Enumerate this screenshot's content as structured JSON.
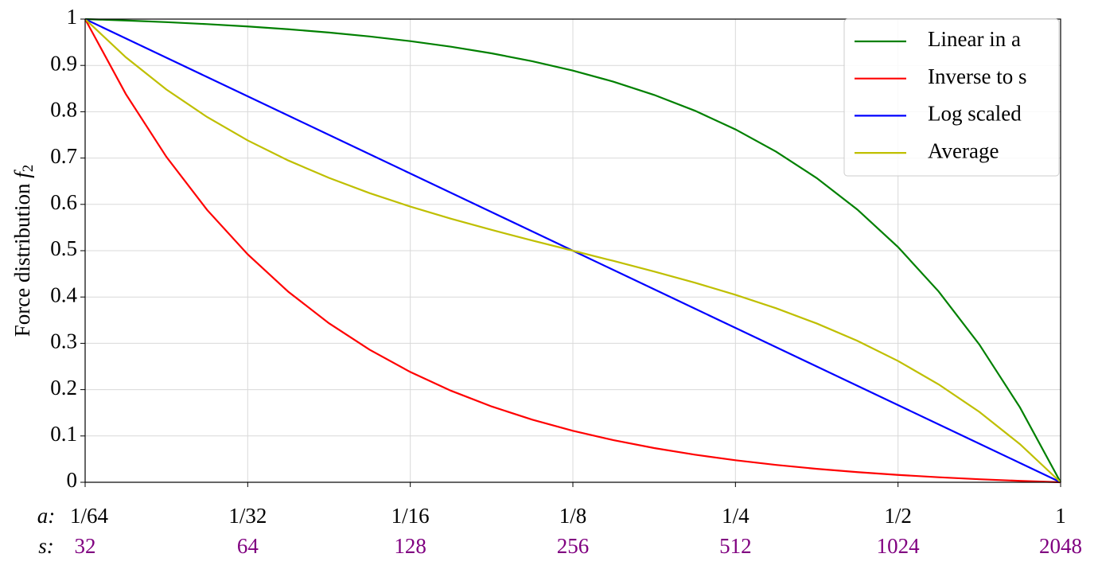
{
  "chart_data": {
    "type": "line",
    "ylabel": {
      "text": "Force distribution",
      "var": "f",
      "sub": "2"
    },
    "xlabel": "a:",
    "x2label": "s:",
    "x": [
      0.015625,
      0.018581,
      0.022097,
      0.026278,
      0.03125,
      0.037163,
      0.044194,
      0.052556,
      0.0625,
      0.074325,
      0.088388,
      0.105112,
      0.125,
      0.148651,
      0.176777,
      0.210224,
      0.25,
      0.297302,
      0.353553,
      0.420448,
      0.5,
      0.594604,
      0.707107,
      0.840896,
      1
    ],
    "series": [
      {
        "name": "Linear in a",
        "color": "#008000",
        "values": [
          1.0,
          0.997,
          0.99343,
          0.98918,
          0.98413,
          0.97812,
          0.97098,
          0.96248,
          0.95238,
          0.94037,
          0.92608,
          0.90909,
          0.88889,
          0.86486,
          0.83629,
          0.80232,
          0.7619,
          0.71385,
          0.65671,
          0.58875,
          0.50794,
          0.41183,
          0.29754,
          0.16163,
          0
        ]
      },
      {
        "name": "Inverse to s",
        "color": "#ff0000",
        "values": [
          1.0,
          0.83837,
          0.70246,
          0.58818,
          0.49206,
          0.41125,
          0.34329,
          0.28615,
          0.2381,
          0.19768,
          0.16371,
          0.13514,
          0.11111,
          0.09091,
          0.07392,
          0.05963,
          0.04762,
          0.03752,
          0.02902,
          0.02188,
          0.01587,
          0.01083,
          0.00657,
          0.003,
          0
        ]
      },
      {
        "name": "Log scaled",
        "color": "#0000ff",
        "values": [
          1.0,
          0.95833,
          0.91667,
          0.875,
          0.83333,
          0.79167,
          0.75,
          0.70833,
          0.66667,
          0.625,
          0.58333,
          0.54167,
          0.5,
          0.45833,
          0.41667,
          0.375,
          0.33333,
          0.29167,
          0.25,
          0.20833,
          0.16667,
          0.125,
          0.08333,
          0.04167,
          0
        ]
      },
      {
        "name": "Average",
        "color": "#bfbf00",
        "values": [
          1.0,
          0.91769,
          0.84795,
          0.78868,
          0.7381,
          0.69469,
          0.65714,
          0.62432,
          0.59524,
          0.56903,
          0.5449,
          0.52212,
          0.5,
          0.47789,
          0.45511,
          0.43098,
          0.40476,
          0.37569,
          0.34287,
          0.30532,
          0.26191,
          0.21133,
          0.15206,
          0.08232,
          0
        ]
      }
    ],
    "xscale": "log",
    "xlim": [
      0.015625,
      1
    ],
    "xticks": [
      {
        "value": 0.015625,
        "label": "1/64"
      },
      {
        "value": 0.03125,
        "label": "1/32"
      },
      {
        "value": 0.0625,
        "label": "1/16"
      },
      {
        "value": 0.125,
        "label": "1/8"
      },
      {
        "value": 0.25,
        "label": "1/4"
      },
      {
        "value": 0.5,
        "label": "1/2"
      },
      1
    ],
    "x2lim": [
      32,
      2048
    ],
    "x2ticks": [
      32,
      64,
      128,
      256,
      512,
      1024,
      2048
    ],
    "x2color": "#800080",
    "ylim": [
      0,
      1
    ],
    "yticks": [
      0,
      0.1,
      0.2,
      0.3,
      0.4,
      0.5,
      0.6,
      0.7,
      0.8,
      0.9,
      1
    ],
    "grid": true,
    "legend": "upper right"
  }
}
